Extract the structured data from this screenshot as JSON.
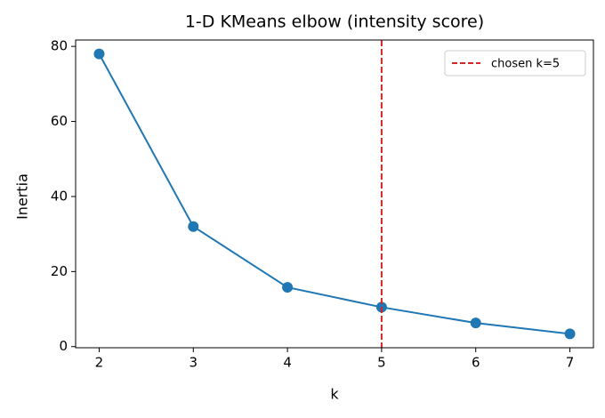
{
  "chart_data": {
    "type": "line",
    "title": "1-D KMeans elbow (intensity score)",
    "x_label": "k",
    "y_label": "Inertia",
    "x": [
      2,
      3,
      4,
      5,
      6,
      7
    ],
    "series": [
      {
        "color": "#1f77b4",
        "values": [
          78,
          32,
          15.8,
          10.5,
          6.3,
          3.4
        ]
      }
    ],
    "vline": {
      "x": 5,
      "label": "chosen k=5",
      "color": "#d62728"
    },
    "xlim": [
      1.75,
      7.25
    ],
    "xticks": [
      2,
      3,
      4,
      5,
      6,
      7
    ],
    "ylim": [
      -0.3,
      81.7
    ],
    "yticks": [
      0,
      20,
      40,
      60,
      80
    ],
    "grid": false,
    "legend": "upper right",
    "markers": true
  }
}
